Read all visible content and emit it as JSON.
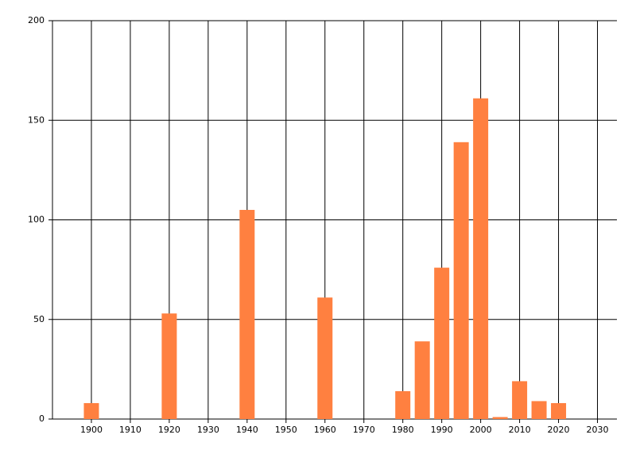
{
  "chart_data": {
    "type": "bar",
    "x": [
      1900,
      1920,
      1940,
      1960,
      1980,
      1985,
      1990,
      1995,
      2000,
      2005,
      2010,
      2015,
      2020
    ],
    "values": [
      8,
      53,
      105,
      61,
      14,
      39,
      76,
      139,
      161,
      1,
      19,
      9,
      8
    ],
    "color": "#ff8040",
    "xlim": [
      1890,
      2035
    ],
    "xticks": [
      1900,
      1910,
      1920,
      1930,
      1940,
      1950,
      1960,
      1970,
      1980,
      1990,
      2000,
      2010,
      2020,
      2030
    ],
    "ylim": [
      0,
      200
    ],
    "yticks": [
      0,
      50,
      100,
      150,
      200
    ],
    "grid": true
  }
}
